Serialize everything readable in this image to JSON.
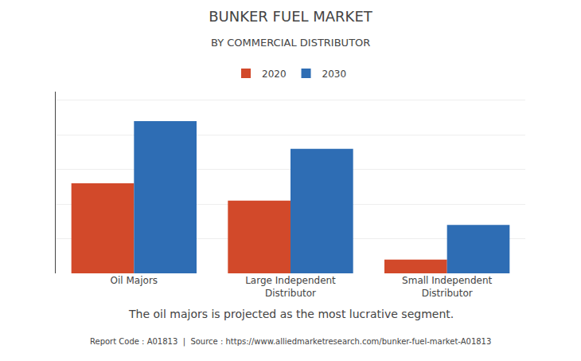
{
  "chart_data": {
    "type": "bar",
    "title": "BUNKER FUEL MARKET",
    "subtitle": "BY COMMERCIAL DISTRIBUTOR",
    "categories": [
      "Oil Majors",
      "Large Independent\nDistributor",
      "Small Independent\nDistributor"
    ],
    "series": [
      {
        "name": "2020",
        "color": "#D2492A",
        "values": [
          52,
          42,
          8
        ]
      },
      {
        "name": "2030",
        "color": "#2E6DB4",
        "values": [
          88,
          72,
          28
        ]
      }
    ],
    "ylim": [
      0,
      105
    ],
    "yticks": [
      0,
      20,
      40,
      60,
      80,
      100
    ],
    "grid": true,
    "legend": "top",
    "tick_labels": "x",
    "annotations": [
      "The oil majors is projected as the most lucrative segment.",
      "Report Code : A01813  |  Source : https://www.alliedmarketresearch.com/bunker-fuel-market-A01813"
    ]
  }
}
